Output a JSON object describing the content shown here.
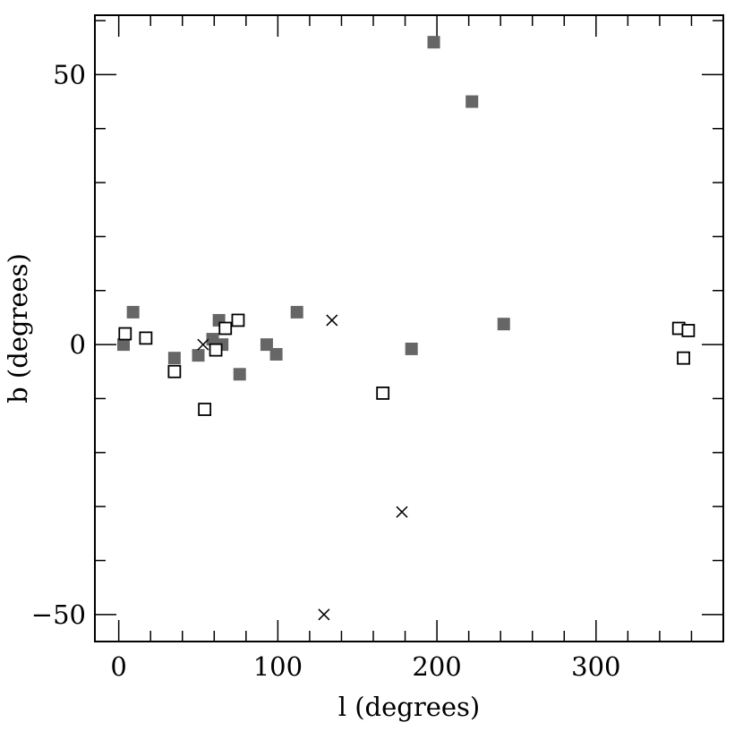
{
  "chart_data": {
    "type": "scatter",
    "xlabel": "l (degrees)",
    "ylabel": "b (degrees)",
    "xlim": [
      -15,
      380
    ],
    "ylim": [
      -55,
      61
    ],
    "xticks_major": [
      0,
      100,
      200,
      300
    ],
    "xtick_labels": [
      "0",
      "100",
      "200",
      "300"
    ],
    "yticks_major": [
      -50,
      0,
      50
    ],
    "ytick_labels": [
      "−50",
      "0",
      "50"
    ],
    "xticks_minor_step": 20,
    "yticks_minor_step": 10,
    "grid": false,
    "series": [
      {
        "marker": "filled-square",
        "color": "#666666",
        "points": [
          {
            "x": 3,
            "y": 0
          },
          {
            "x": 9,
            "y": 6
          },
          {
            "x": 35,
            "y": -2.5
          },
          {
            "x": 50,
            "y": -2
          },
          {
            "x": 59,
            "y": 1
          },
          {
            "x": 63,
            "y": 4.5
          },
          {
            "x": 65,
            "y": 0
          },
          {
            "x": 76,
            "y": -5.5
          },
          {
            "x": 93,
            "y": 0
          },
          {
            "x": 99,
            "y": -1.8
          },
          {
            "x": 112,
            "y": 6
          },
          {
            "x": 184,
            "y": -0.8
          },
          {
            "x": 198,
            "y": 56
          },
          {
            "x": 222,
            "y": 45
          },
          {
            "x": 242,
            "y": 3.8
          }
        ]
      },
      {
        "marker": "open-square",
        "color": "#000000",
        "points": [
          {
            "x": 4,
            "y": 2
          },
          {
            "x": 17,
            "y": 1.2
          },
          {
            "x": 35,
            "y": -5
          },
          {
            "x": 54,
            "y": -12
          },
          {
            "x": 61,
            "y": -1
          },
          {
            "x": 67,
            "y": 3
          },
          {
            "x": 75,
            "y": 4.5
          },
          {
            "x": 166,
            "y": -9
          },
          {
            "x": 352,
            "y": 3
          },
          {
            "x": 355,
            "y": -2.5
          },
          {
            "x": 358,
            "y": 2.6
          }
        ]
      },
      {
        "marker": "cross",
        "color": "#000000",
        "points": [
          {
            "x": 53,
            "y": 0
          },
          {
            "x": 134,
            "y": 4.5
          },
          {
            "x": 178,
            "y": -31
          },
          {
            "x": 129,
            "y": -50
          }
        ]
      }
    ]
  }
}
